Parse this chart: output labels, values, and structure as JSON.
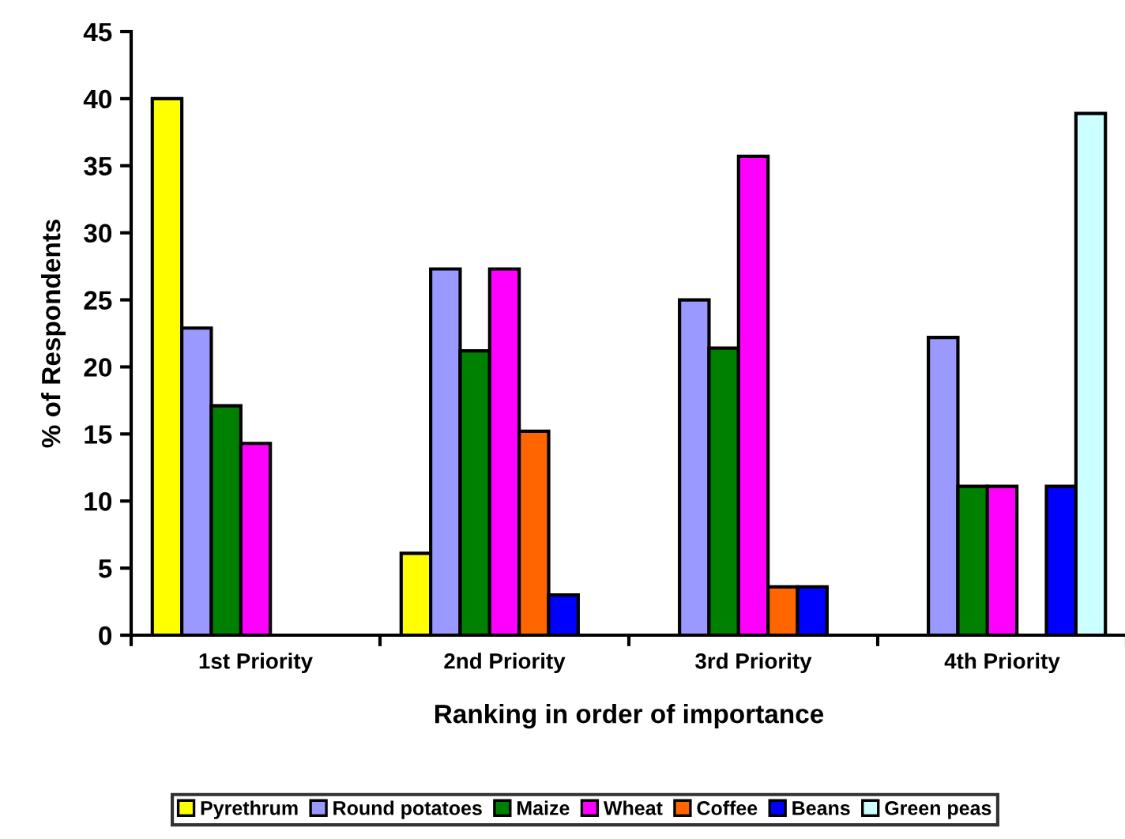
{
  "chart_data": {
    "type": "bar",
    "xlabel": "Ranking in order of importance",
    "ylabel": "% of Respondents",
    "categories": [
      "1st Priority",
      "2nd Priority",
      "3rd Priority",
      "4th Priority"
    ],
    "series": [
      {
        "name": "Pyrethrum",
        "color": "#ffff00",
        "values": [
          40,
          6.1,
          null,
          null
        ]
      },
      {
        "name": "Round potatoes",
        "color": "#9999ff",
        "values": [
          22.9,
          27.3,
          25.0,
          22.2
        ]
      },
      {
        "name": "Maize",
        "color": "#008000",
        "values": [
          17.1,
          21.2,
          21.4,
          11.1
        ]
      },
      {
        "name": "Wheat",
        "color": "#ff00ff",
        "values": [
          14.3,
          27.3,
          35.7,
          11.1
        ]
      },
      {
        "name": "Coffee",
        "color": "#ff6600",
        "values": [
          null,
          15.2,
          3.6,
          null
        ]
      },
      {
        "name": "Beans",
        "color": "#0000ff",
        "values": [
          null,
          3.0,
          3.6,
          11.1
        ]
      },
      {
        "name": "Green peas",
        "color": "#ccffff",
        "values": [
          null,
          null,
          null,
          38.9
        ]
      }
    ],
    "ylim": [
      0,
      45
    ],
    "yticks": [
      0,
      5,
      10,
      15,
      20,
      25,
      30,
      35,
      40,
      45
    ],
    "legend": "bottom",
    "grid": false
  }
}
